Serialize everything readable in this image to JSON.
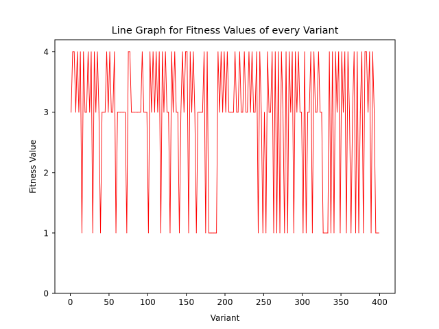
{
  "chart_data": {
    "type": "line",
    "title": "Line Graph for Fitness Values of every Variant",
    "xlabel": "Variant",
    "ylabel": "Fitness Value",
    "xlim": [
      -20,
      420
    ],
    "ylim": [
      0,
      4.2
    ],
    "xticks": [
      0,
      50,
      100,
      150,
      200,
      250,
      300,
      350,
      400
    ],
    "yticks": [
      0,
      1,
      2,
      3,
      4
    ],
    "grid": false,
    "series": [
      {
        "color": "#ff0000",
        "x": [
          1,
          3,
          5,
          7,
          9,
          11,
          13,
          15,
          17,
          19,
          21,
          23,
          25,
          27,
          29,
          31,
          33,
          35,
          37,
          39,
          41,
          43,
          45,
          47,
          49,
          51,
          53,
          55,
          57,
          59,
          61,
          63,
          65,
          67,
          69,
          71,
          73,
          75,
          77,
          79,
          81,
          83,
          85,
          87,
          89,
          91,
          93,
          95,
          97,
          99,
          101,
          103,
          105,
          107,
          109,
          111,
          113,
          115,
          117,
          119,
          121,
          123,
          125,
          127,
          129,
          131,
          133,
          135,
          137,
          139,
          141,
          143,
          145,
          147,
          149,
          151,
          153,
          155,
          157,
          159,
          161,
          163,
          165,
          167,
          169,
          171,
          173,
          175,
          177,
          179,
          181,
          183,
          185,
          187,
          189,
          191,
          193,
          195,
          197,
          199,
          201,
          203,
          205,
          207,
          209,
          211,
          213,
          215,
          217,
          219,
          221,
          223,
          225,
          227,
          229,
          231,
          233,
          235,
          237,
          239,
          241,
          243,
          245,
          247,
          249,
          251,
          253,
          255,
          257,
          259,
          261,
          263,
          265,
          267,
          269,
          271,
          273,
          275,
          277,
          279,
          281,
          283,
          285,
          287,
          289,
          291,
          293,
          295,
          297,
          299,
          301,
          303,
          305,
          307,
          309,
          311,
          313,
          315,
          317,
          319,
          321,
          323,
          325,
          327,
          329,
          331,
          333,
          335,
          337,
          339,
          341,
          343,
          345,
          347,
          349,
          351,
          353,
          355,
          357,
          359,
          361,
          363,
          365,
          367,
          369,
          371,
          373,
          375,
          377,
          379,
          381,
          383,
          385,
          387,
          389,
          391,
          393,
          395,
          397,
          399
        ],
        "y": [
          3,
          4,
          4,
          3,
          4,
          3,
          4,
          1,
          4,
          3,
          3,
          4,
          3,
          4,
          1,
          4,
          3,
          4,
          3,
          1,
          3,
          3,
          3,
          4,
          3,
          4,
          3,
          3,
          4,
          1,
          3,
          3,
          3,
          3,
          3,
          3,
          1,
          4,
          4,
          3,
          3,
          3,
          3,
          3,
          3,
          3,
          4,
          3,
          3,
          3,
          1,
          4,
          3,
          4,
          3,
          4,
          3,
          4,
          1,
          4,
          3,
          4,
          3,
          3,
          1,
          4,
          3,
          4,
          3,
          3,
          1,
          3,
          4,
          3,
          4,
          4,
          1,
          4,
          3,
          4,
          3,
          1,
          3,
          3,
          3,
          3,
          4,
          1,
          4,
          1,
          1,
          1,
          1,
          1,
          1,
          4,
          3,
          4,
          3,
          4,
          3,
          4,
          3,
          3,
          3,
          3,
          4,
          3,
          3,
          4,
          3,
          3,
          4,
          3,
          3,
          4,
          3,
          4,
          3,
          3,
          4,
          1,
          4,
          3,
          1,
          3,
          1,
          4,
          3,
          3,
          4,
          1,
          4,
          1,
          4,
          1,
          4,
          3,
          1,
          4,
          1,
          4,
          3,
          4,
          1,
          4,
          3,
          4,
          3,
          3,
          1,
          4,
          1,
          3,
          3,
          4,
          1,
          4,
          3,
          3,
          4,
          3,
          3,
          1,
          1,
          1,
          1,
          4,
          1,
          4,
          1,
          4,
          3,
          4,
          1,
          4,
          3,
          4,
          1,
          4,
          3,
          1,
          3,
          4,
          1,
          4,
          1,
          3,
          4,
          1,
          4,
          4,
          3,
          4,
          1,
          4,
          3,
          1,
          1,
          1
        ]
      }
    ]
  }
}
